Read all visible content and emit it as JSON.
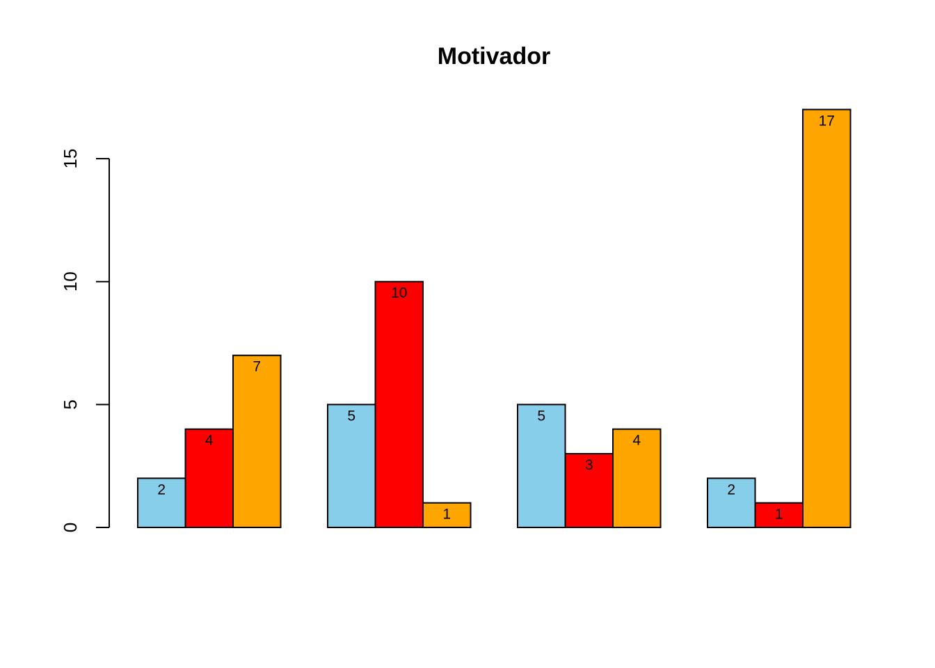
{
  "chart_data": {
    "type": "bar",
    "title": "Motivador",
    "xlabel": "",
    "ylabel": "",
    "ylim": [
      0,
      17
    ],
    "yticks": [
      0,
      5,
      10,
      15
    ],
    "groups": 4,
    "series": [
      {
        "color": "#87CEEB",
        "values": [
          2,
          5,
          5,
          2
        ]
      },
      {
        "color": "#FF0000",
        "values": [
          4,
          10,
          3,
          1
        ]
      },
      {
        "color": "#FFA500",
        "values": [
          7,
          1,
          4,
          17
        ]
      }
    ],
    "data_labels": true,
    "legend": "none",
    "grid": false
  }
}
